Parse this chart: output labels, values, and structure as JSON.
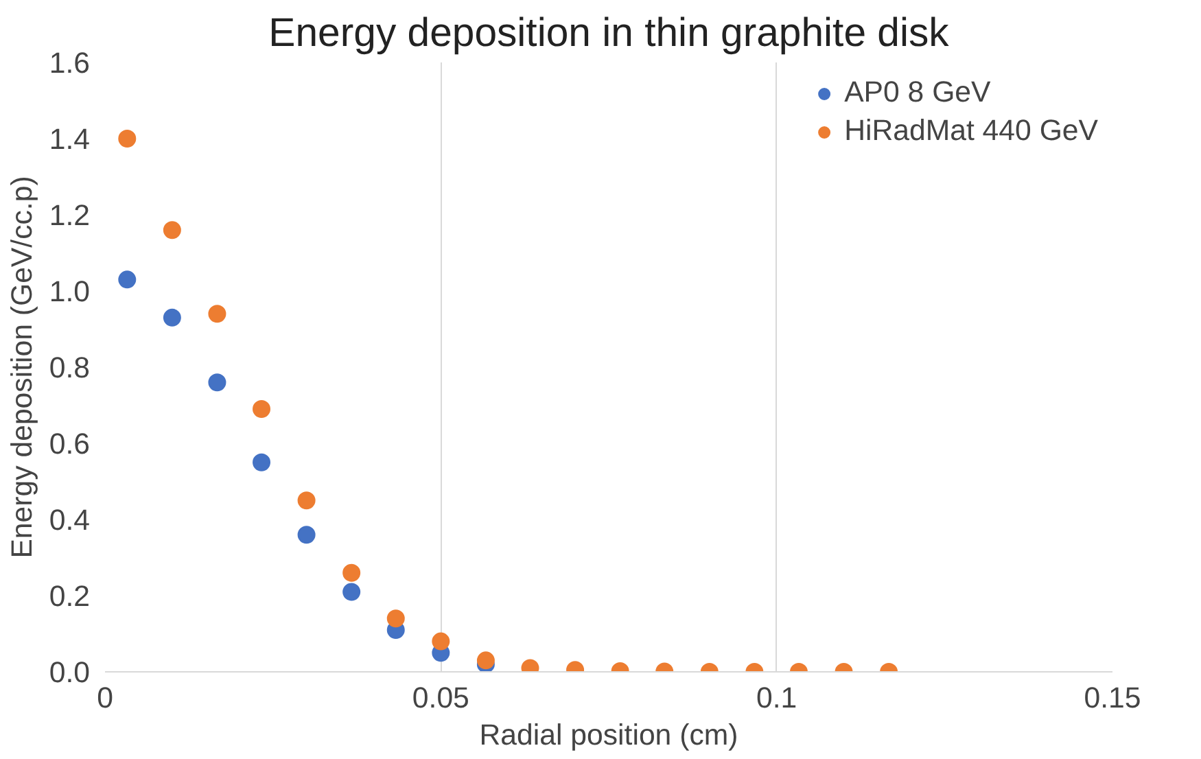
{
  "chart_data": {
    "type": "scatter",
    "title": "Energy deposition in thin graphite disk",
    "xlabel": "Radial position (cm)",
    "ylabel": "Energy deposition (GeV/cc.p)",
    "x": [
      0.0033,
      0.01,
      0.0167,
      0.0233,
      0.03,
      0.0367,
      0.0433,
      0.05,
      0.0567,
      0.0633,
      0.07,
      0.0767,
      0.0833,
      0.09,
      0.0967,
      0.1033,
      0.11,
      0.1167
    ],
    "series": [
      {
        "name": "AP0 8 GeV",
        "color": "#4472c4",
        "values": [
          1.03,
          0.93,
          0.76,
          0.55,
          0.36,
          0.21,
          0.11,
          0.05,
          0.02,
          null,
          null,
          null,
          null,
          null,
          null,
          null,
          null,
          null
        ]
      },
      {
        "name": "HiRadMat 440 GeV",
        "color": "#ed7d31",
        "values": [
          1.4,
          1.16,
          0.94,
          0.69,
          0.45,
          0.26,
          0.14,
          0.08,
          0.03,
          0.01,
          0.005,
          0.002,
          0.001,
          0,
          0,
          0,
          0,
          0
        ]
      }
    ],
    "xlim": [
      0,
      0.15
    ],
    "xticks": [
      {
        "value": 0,
        "label": "0"
      },
      0.05,
      {
        "value": 0.1,
        "label": "0.1"
      },
      0.15
    ],
    "ylim": [
      0,
      1.6
    ],
    "yticks": [
      {
        "value": 0,
        "label": "0.0"
      },
      0.2,
      0.4,
      0.6,
      0.8,
      {
        "value": 1,
        "label": "1.0"
      },
      1.2,
      1.4,
      1.6
    ],
    "grid": "x",
    "legend": "top right",
    "marker": "circle"
  }
}
